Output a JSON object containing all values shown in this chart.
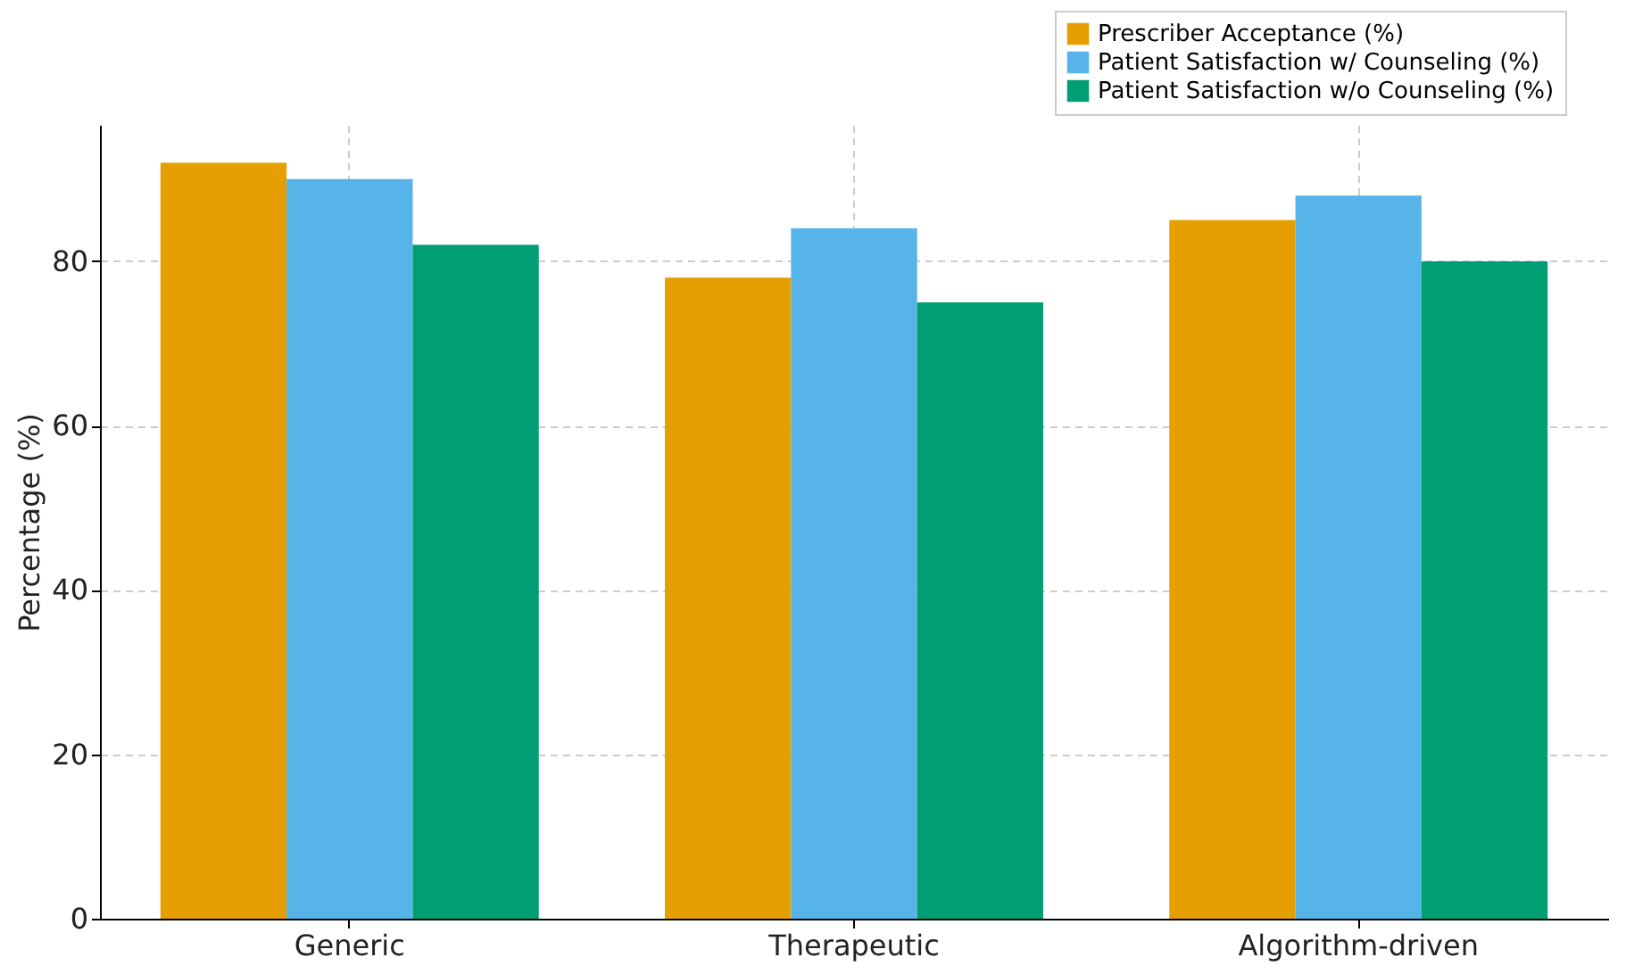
{
  "chart_data": {
    "type": "bar",
    "ylabel": "Percentage (%)",
    "categories": [
      "Generic",
      "Therapeutic",
      "Algorithm-driven"
    ],
    "series": [
      {
        "name": "Prescriber Acceptance (%)",
        "color": "#e69f00",
        "values": [
          92,
          78,
          85
        ]
      },
      {
        "name": "Patient Satisfaction w/ Counseling (%)",
        "color": "#56b4e9",
        "values": [
          90,
          84,
          88
        ]
      },
      {
        "name": "Patient Satisfaction w/o Counseling (%)",
        "color": "#009e73",
        "values": [
          82,
          75,
          80
        ]
      }
    ],
    "ylim": [
      0,
      96.6
    ],
    "yticks": [
      0,
      20,
      40,
      60,
      80
    ],
    "grid": true,
    "legend": "top right"
  }
}
